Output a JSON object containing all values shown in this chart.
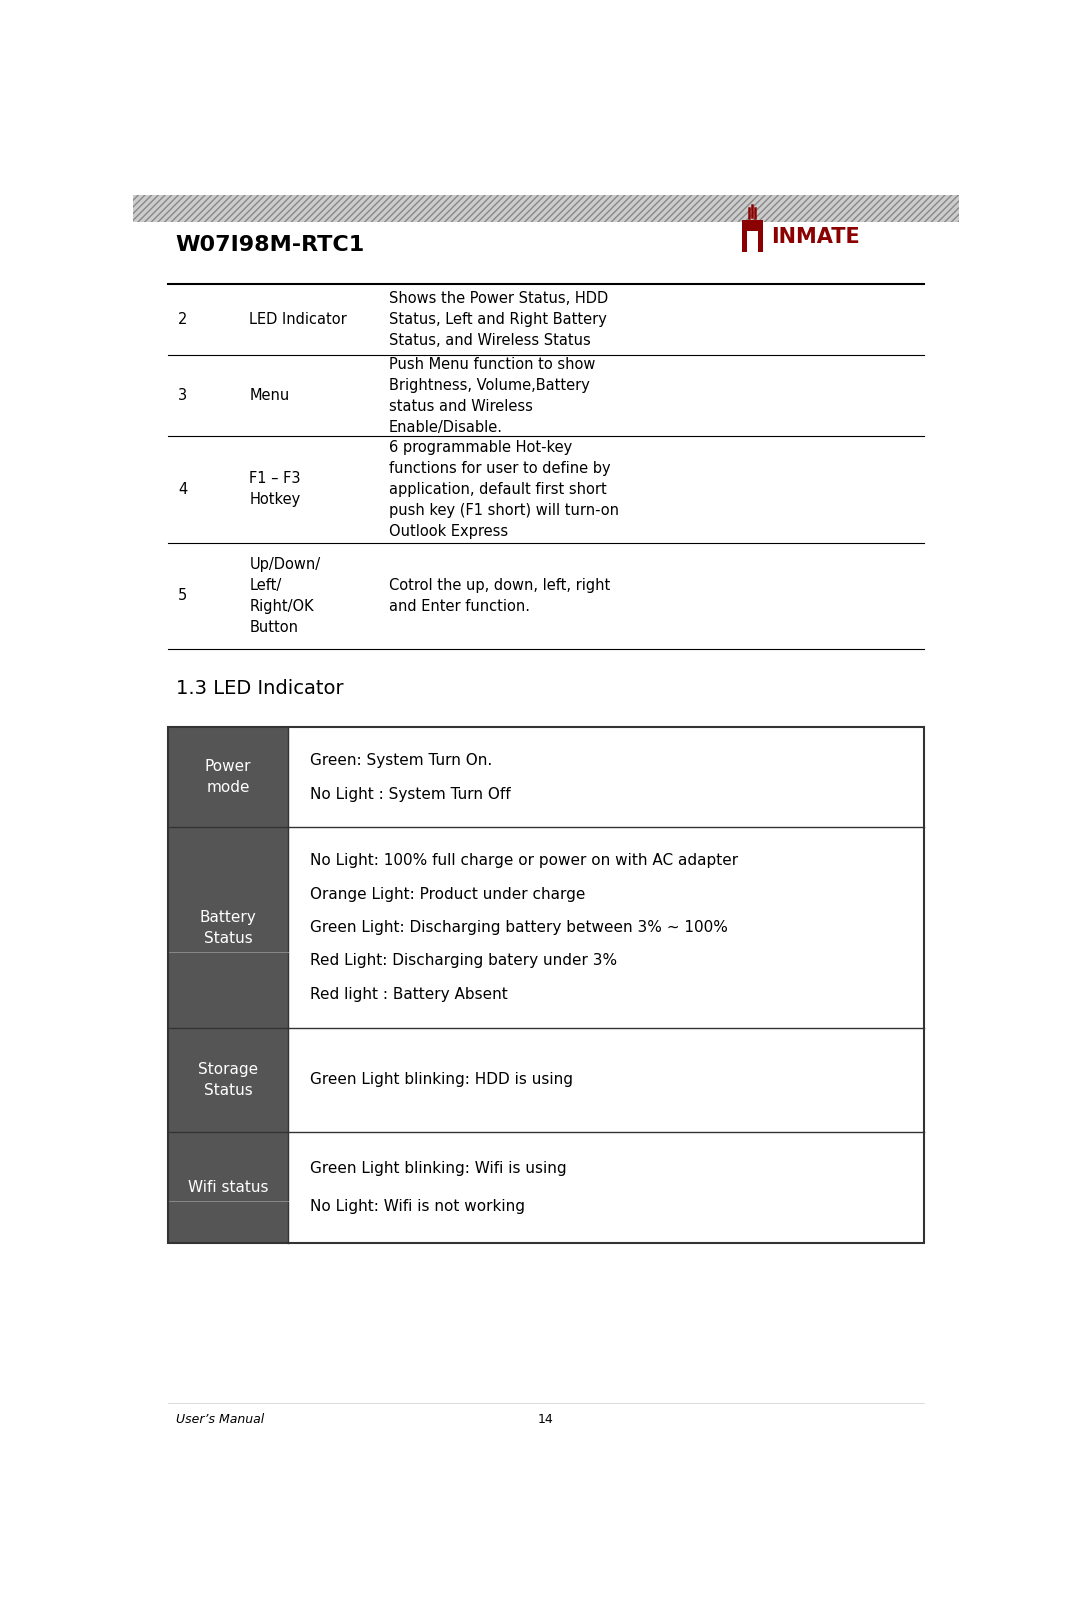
{
  "page_title": "W07I98M-RTC1",
  "page_number": "14",
  "footer_left": "User’s Manual",
  "bg_color": "#ffffff",
  "top_table": {
    "rows": [
      {
        "num": "2",
        "name": "LED Indicator",
        "desc": "Shows the Power Status, HDD\nStatus, Left and Right Battery\nStatus, and Wireless Status"
      },
      {
        "num": "3",
        "name": "Menu",
        "desc": "Push Menu function to show\nBrightness, Volume,Battery\nstatus and Wireless\nEnable/Disable."
      },
      {
        "num": "4",
        "name": "F1 – F3\nHotkey",
        "desc": "6 programmable Hot-key\nfunctions for user to define by\napplication, default first short\npush key (F1 short) will turn-on\nOutlook Express"
      },
      {
        "num": "5",
        "name": "Up/Down/\nLeft/\nRight/OK\nButton",
        "desc": "Cotrol the up, down, left, right\nand Enter function."
      }
    ]
  },
  "section_title": "1.3 LED Indicator",
  "led_table": {
    "header_bg": "#555555",
    "header_text_color": "#ffffff",
    "border_color": "#333333",
    "rows": [
      {
        "label": "Power\nmode",
        "lines": [
          "Green: System Turn On.",
          "No Light : System Turn Off"
        ]
      },
      {
        "label": "Battery\nStatus",
        "lines": [
          "No Light: 100% full charge or power on with AC adapter",
          "Orange Light: Product under charge",
          "Green Light: Discharging battery between 3% ~ 100%",
          "Red Light: Discharging batery under 3%",
          "Red light : Battery Absent"
        ]
      },
      {
        "label": "Storage\nStatus",
        "lines": [
          "Green Light blinking: HDD is using"
        ]
      },
      {
        "label": "Wifi status",
        "lines": [
          "Green Light blinking: Wifi is using",
          "No Light: Wifi is not working"
        ]
      }
    ]
  }
}
